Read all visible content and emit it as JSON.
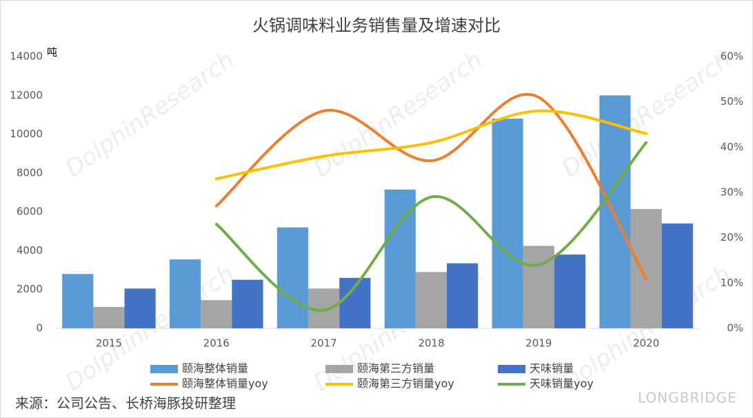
{
  "chart_data": {
    "type": "bar",
    "title": "火锅调味料业务销售量及增速对比",
    "y_unit": "吨",
    "source": "来源：公司公告、长桥海豚投研整理",
    "watermark": "DolphinResearch",
    "watermark_brand": "LONGBRIDGE",
    "categories": [
      "2015",
      "2016",
      "2017",
      "2018",
      "2019",
      "2020"
    ],
    "series": [
      {
        "name": "颐海整体销量",
        "type": "bar",
        "color": "#5b9bd5",
        "values": [
          2800,
          3550,
          5200,
          7150,
          10800,
          12000
        ]
      },
      {
        "name": "颐海第三方销量",
        "type": "bar",
        "color": "#a5a5a5",
        "values": [
          1100,
          1450,
          2050,
          2900,
          4250,
          6150
        ]
      },
      {
        "name": "天味销量",
        "type": "bar",
        "color": "#4472c4",
        "values": [
          2050,
          2500,
          2600,
          3350,
          3800,
          5400
        ]
      },
      {
        "name": "颐海整体销量yoy",
        "type": "line",
        "axis": "y2",
        "color": "#ed7d31",
        "values": [
          null,
          27,
          48,
          37,
          51,
          11
        ]
      },
      {
        "name": "颐海第三方销量yoy",
        "type": "line",
        "axis": "y2",
        "color": "#ffc000",
        "values": [
          null,
          33,
          38,
          41,
          48,
          43
        ]
      },
      {
        "name": "天味销量yoy",
        "type": "line",
        "axis": "y2",
        "color": "#70ad47",
        "values": [
          null,
          23,
          4,
          29,
          14,
          41
        ]
      }
    ],
    "ylim": [
      0,
      14000
    ],
    "yticks": [
      0,
      2000,
      4000,
      6000,
      8000,
      10000,
      12000,
      14000
    ],
    "y2lim": [
      0,
      60
    ],
    "y2ticks": [
      {
        "value": 0,
        "label": "0%"
      },
      {
        "value": 10,
        "label": "10%"
      },
      {
        "value": 20,
        "label": "20%"
      },
      {
        "value": 30,
        "label": "30%"
      },
      {
        "value": 40,
        "label": "40%"
      },
      {
        "value": 50,
        "label": "50%"
      },
      {
        "value": 60,
        "label": "60%"
      }
    ],
    "grid": false
  }
}
